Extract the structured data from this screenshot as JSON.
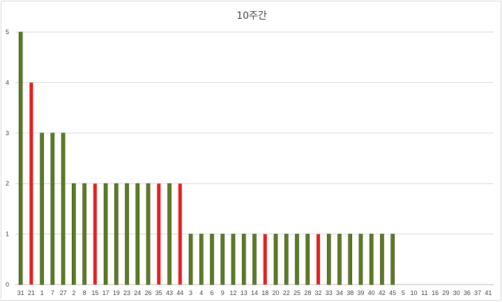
{
  "chart_data": {
    "type": "bar",
    "title": "10주간",
    "xlabel": "",
    "ylabel": "",
    "ylim": [
      0,
      5
    ],
    "yticks": [
      0,
      1,
      2,
      3,
      4,
      5
    ],
    "grid": true,
    "legend": "none",
    "colors": {
      "default": "#5b7a1f",
      "highlight": "#e31b1b",
      "bar_edge": "#2e3d0f"
    },
    "categories": [
      "31",
      "21",
      "1",
      "7",
      "27",
      "2",
      "8",
      "15",
      "17",
      "19",
      "23",
      "24",
      "26",
      "35",
      "43",
      "44",
      "3",
      "4",
      "6",
      "9",
      "12",
      "13",
      "14",
      "18",
      "20",
      "22",
      "25",
      "28",
      "32",
      "33",
      "34",
      "38",
      "39",
      "40",
      "42",
      "45",
      "5",
      "10",
      "11",
      "16",
      "29",
      "30",
      "36",
      "37",
      "41"
    ],
    "values": [
      5,
      4,
      3,
      3,
      3,
      2,
      2,
      2,
      2,
      2,
      2,
      2,
      2,
      2,
      2,
      2,
      1,
      1,
      1,
      1,
      1,
      1,
      1,
      1,
      1,
      1,
      1,
      1,
      1,
      1,
      1,
      1,
      1,
      1,
      1,
      1,
      0,
      0,
      0,
      0,
      0,
      0,
      0,
      0,
      0
    ],
    "highlighted": [
      "21",
      "15",
      "35",
      "44",
      "18",
      "32"
    ]
  }
}
